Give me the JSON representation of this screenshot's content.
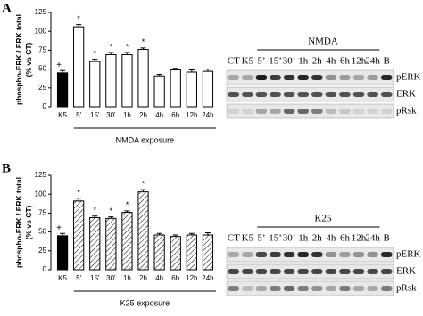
{
  "panel_labels": [
    "A",
    "B"
  ],
  "chart_data": [
    {
      "type": "bar",
      "ylabel": [
        "phospho-ERK / ERK total",
        "(% vs CT)"
      ],
      "xlabel": "NMDA exposure",
      "categories": [
        "K5",
        "5'",
        "15'",
        "30'",
        "1h",
        "2h",
        "4h",
        "6h",
        "12h",
        "24h"
      ],
      "values": [
        45,
        106,
        60,
        69,
        69,
        76,
        41,
        49,
        46,
        47
      ],
      "errors": [
        3,
        3,
        3,
        3,
        3,
        2,
        2,
        2,
        3,
        3
      ],
      "markers": [
        "+",
        "*",
        "*",
        "*",
        "*",
        "*",
        null,
        null,
        null,
        null
      ],
      "colors": [
        "#000000",
        "#ffffff",
        "#ffffff",
        "#ffffff",
        "#ffffff",
        "#ffffff",
        "#ffffff",
        "#ffffff",
        "#ffffff",
        "#ffffff"
      ],
      "hatch": false,
      "ylim": [
        0,
        125
      ],
      "yticks": [
        0,
        25,
        50,
        75,
        100,
        125
      ]
    },
    {
      "type": "bar",
      "ylabel": [
        "phospho-ERK / ERK total",
        "(% vs CT)"
      ],
      "xlabel": "K25 exposure",
      "categories": [
        "K5",
        "5'",
        "15'",
        "30'",
        "1h",
        "2h",
        "4h",
        "6h",
        "12h",
        "24h"
      ],
      "values": [
        45,
        91,
        69,
        68,
        76,
        103,
        46,
        44,
        46,
        46
      ],
      "errors": [
        3,
        3,
        2,
        2,
        2,
        3,
        2,
        2,
        2,
        3
      ],
      "markers": [
        "+",
        "*",
        "*",
        "*",
        "*",
        "*",
        null,
        null,
        null,
        null
      ],
      "colors": [
        "#000000",
        "#ffffff",
        "#ffffff",
        "#ffffff",
        "#ffffff",
        "#ffffff",
        "#ffffff",
        "#ffffff",
        "#ffffff",
        "#ffffff"
      ],
      "hatch": true,
      "ylim": [
        0,
        125
      ],
      "yticks": [
        0,
        25,
        50,
        75,
        100,
        125
      ]
    }
  ],
  "blots": [
    {
      "treatment": "NMDA",
      "lanes": [
        "CT",
        "K5",
        "5’",
        "15’",
        "30’",
        "1h",
        "2h",
        "4h",
        "6h",
        "12h",
        "24h",
        "B"
      ],
      "rows": [
        "pERK",
        "ERK",
        "pRsk"
      ]
    },
    {
      "treatment": "K25",
      "lanes": [
        "CT",
        "K5",
        "5’",
        "15’",
        "30’",
        "1h",
        "2h",
        "4h",
        "6h",
        "12h",
        "24h",
        "B"
      ],
      "rows": [
        "pERK",
        "ERK",
        "pRsk"
      ]
    }
  ]
}
